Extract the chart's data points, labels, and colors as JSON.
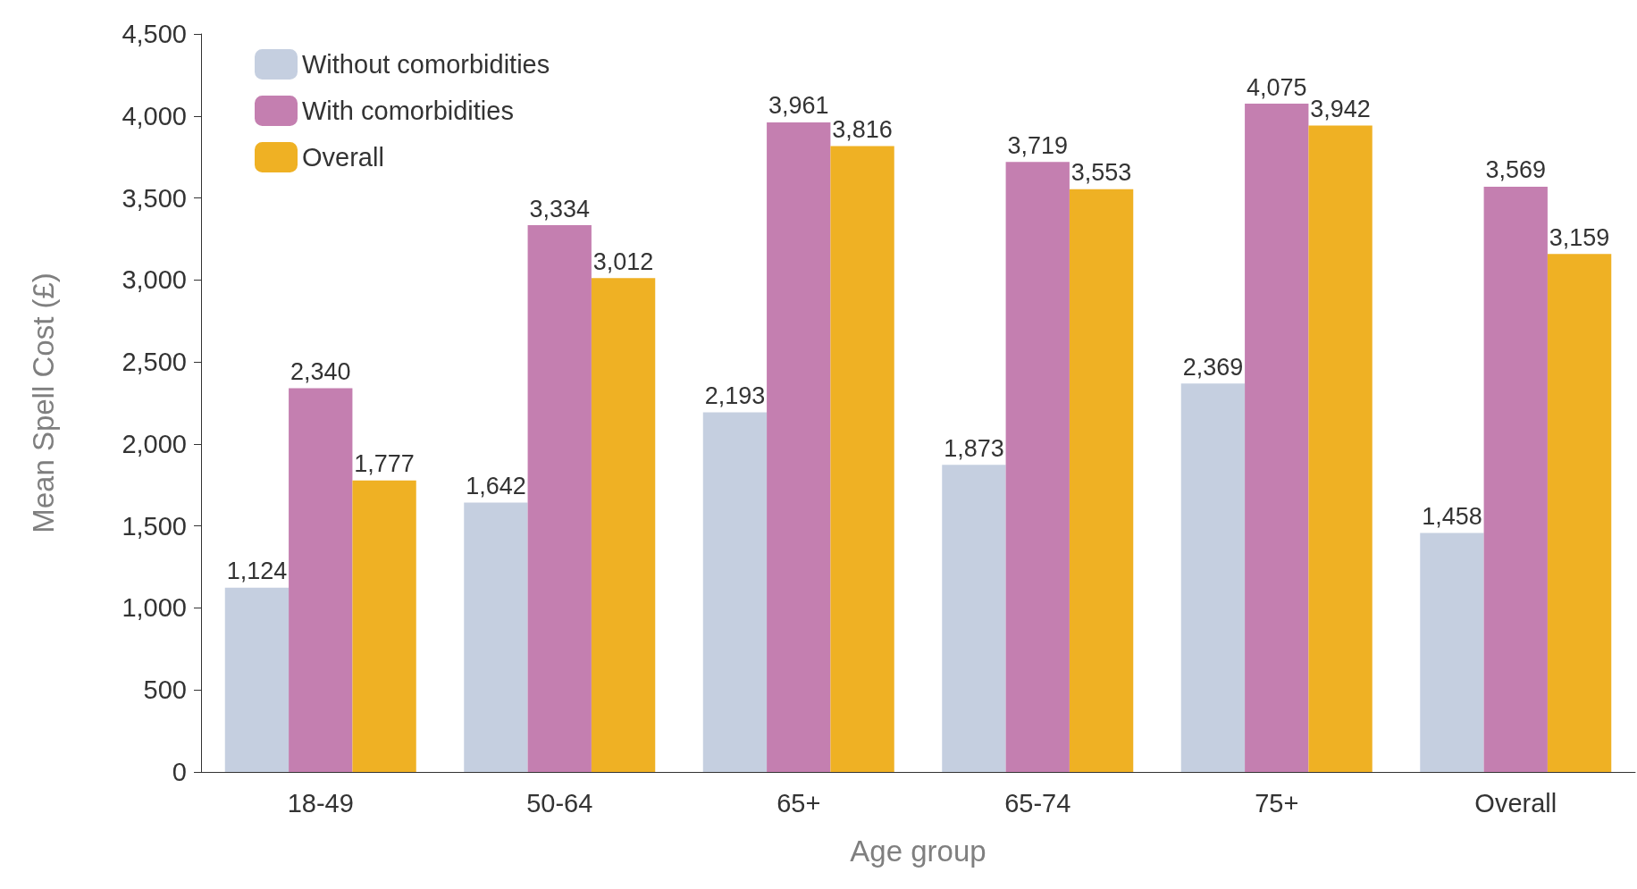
{
  "chart_data": {
    "type": "bar",
    "xlabel": "Age group",
    "ylabel": "Mean Spell Cost (£)",
    "categories": [
      "18-49",
      "50-64",
      "65+",
      "65-74",
      "75+",
      "Overall"
    ],
    "series": [
      {
        "name": "Without comorbidities",
        "color": "#c5cfe0",
        "values": [
          1124,
          1642,
          2193,
          1873,
          2369,
          1458
        ],
        "value_labels": [
          "1,124",
          "1,642",
          "2,193",
          "1,873",
          "2,369",
          "1,458"
        ]
      },
      {
        "name": "With comorbidities",
        "color": "#c47fb0",
        "values": [
          2340,
          3334,
          3961,
          3719,
          4075,
          3569
        ],
        "value_labels": [
          "2,340",
          "3,334",
          "3,961",
          "3,719",
          "4,075",
          "3,569"
        ]
      },
      {
        "name": "Overall",
        "color": "#efb124",
        "values": [
          1777,
          3012,
          3816,
          3553,
          3942,
          3159
        ],
        "value_labels": [
          "1,777",
          "3,012",
          "3,816",
          "3,553",
          "3,942",
          "3,159"
        ]
      }
    ],
    "ylim": [
      0,
      4500
    ],
    "yticks": [
      0,
      500,
      {
        "value": 1000,
        "label": "1,000"
      },
      {
        "value": 1500,
        "label": "1,500"
      },
      {
        "value": 2000,
        "label": "2,000"
      },
      {
        "value": 2500,
        "label": "2,500"
      },
      {
        "value": 3000,
        "label": "3,000"
      },
      {
        "value": 3500,
        "label": "3,500"
      },
      {
        "value": 4000,
        "label": "4,000"
      },
      {
        "value": 4500,
        "label": "4,500"
      }
    ],
    "grid": false,
    "legend": "top left"
  }
}
